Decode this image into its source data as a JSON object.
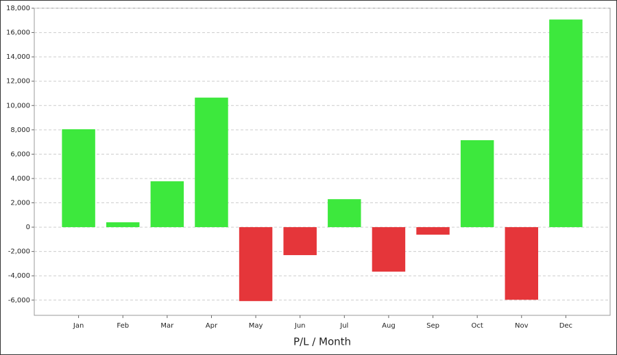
{
  "chart_data": {
    "type": "bar",
    "x_label": "P/L / Month",
    "categories": [
      "Jan",
      "Feb",
      "Mar",
      "Apr",
      "May",
      "Jun",
      "Jul",
      "Aug",
      "Sep",
      "Oct",
      "Nov",
      "Dec"
    ],
    "values": [
      8050,
      400,
      3770,
      10650,
      -6080,
      -2300,
      2300,
      -3660,
      -620,
      7150,
      -5970,
      17070
    ],
    "positive_color": "#3de83d",
    "negative_color": "#e5363a",
    "ylim": [
      -7250,
      18000
    ],
    "yticks": [
      {
        "value": -6000,
        "label": "-6,000"
      },
      {
        "value": -4000,
        "label": "-4,000"
      },
      {
        "value": -2000,
        "label": "-2,000"
      },
      0,
      {
        "value": 2000,
        "label": "2,000"
      },
      {
        "value": 4000,
        "label": "4,000"
      },
      {
        "value": 6000,
        "label": "6,000"
      },
      {
        "value": 8000,
        "label": "8,000"
      },
      {
        "value": 10000,
        "label": "10,000"
      },
      {
        "value": 12000,
        "label": "12,000"
      },
      {
        "value": 14000,
        "label": "14,000"
      },
      {
        "value": 16000,
        "label": "16,000"
      },
      {
        "value": 18000,
        "label": "18,000"
      }
    ],
    "grid": true
  }
}
